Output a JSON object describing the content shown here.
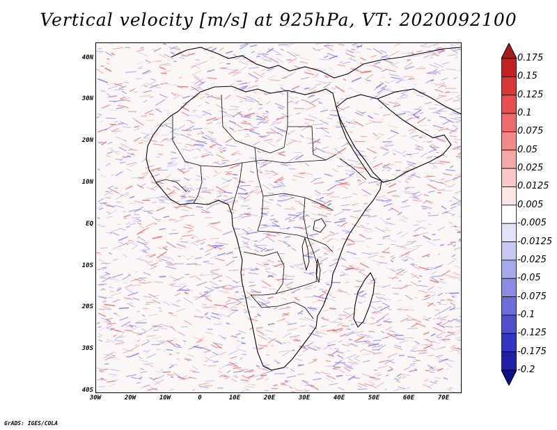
{
  "title": "Vertical velocity [m/s] at 925hPa, VT: 2020092100",
  "footer": "GrADS: IGES/COLA",
  "lat_labels": [
    "40N",
    "30N",
    "20N",
    "10N",
    "EQ",
    "10S",
    "20S",
    "30S",
    "40S"
  ],
  "lon_labels": [
    "30W",
    "20W",
    "10W",
    "0",
    "10E",
    "20E",
    "30E",
    "40E",
    "50E",
    "60E",
    "70E"
  ],
  "map_extent": {
    "lon_min": -30,
    "lon_max": 75,
    "lat_min": -40,
    "lat_max": 44
  },
  "colorbar": {
    "labels": [
      "0.175",
      "0.15",
      "0.125",
      "0.1",
      "0.075",
      "0.05",
      "0.025",
      "0.0125",
      "0.005",
      "-0.005",
      "-0.0125",
      "-0.025",
      "-0.05",
      "-0.075",
      "-0.1",
      "-0.125",
      "-0.175",
      "-0.2"
    ],
    "colors": [
      "#a51a1a",
      "#c42222",
      "#d93636",
      "#e84f4f",
      "#ee6b6b",
      "#f28a8a",
      "#f5a8a8",
      "#f9c9c9",
      "#fce6e6",
      "#ffffff",
      "#e2e2f8",
      "#c8c8f2",
      "#a8a8ec",
      "#8c8ce4",
      "#6c6cda",
      "#4f4fcf",
      "#3434c2",
      "#1f1fa8",
      "#0f0f8c"
    ]
  },
  "field_colors": {
    "positive": "#e86868",
    "negative": "#7272e8",
    "background": "#fbf7f7"
  }
}
